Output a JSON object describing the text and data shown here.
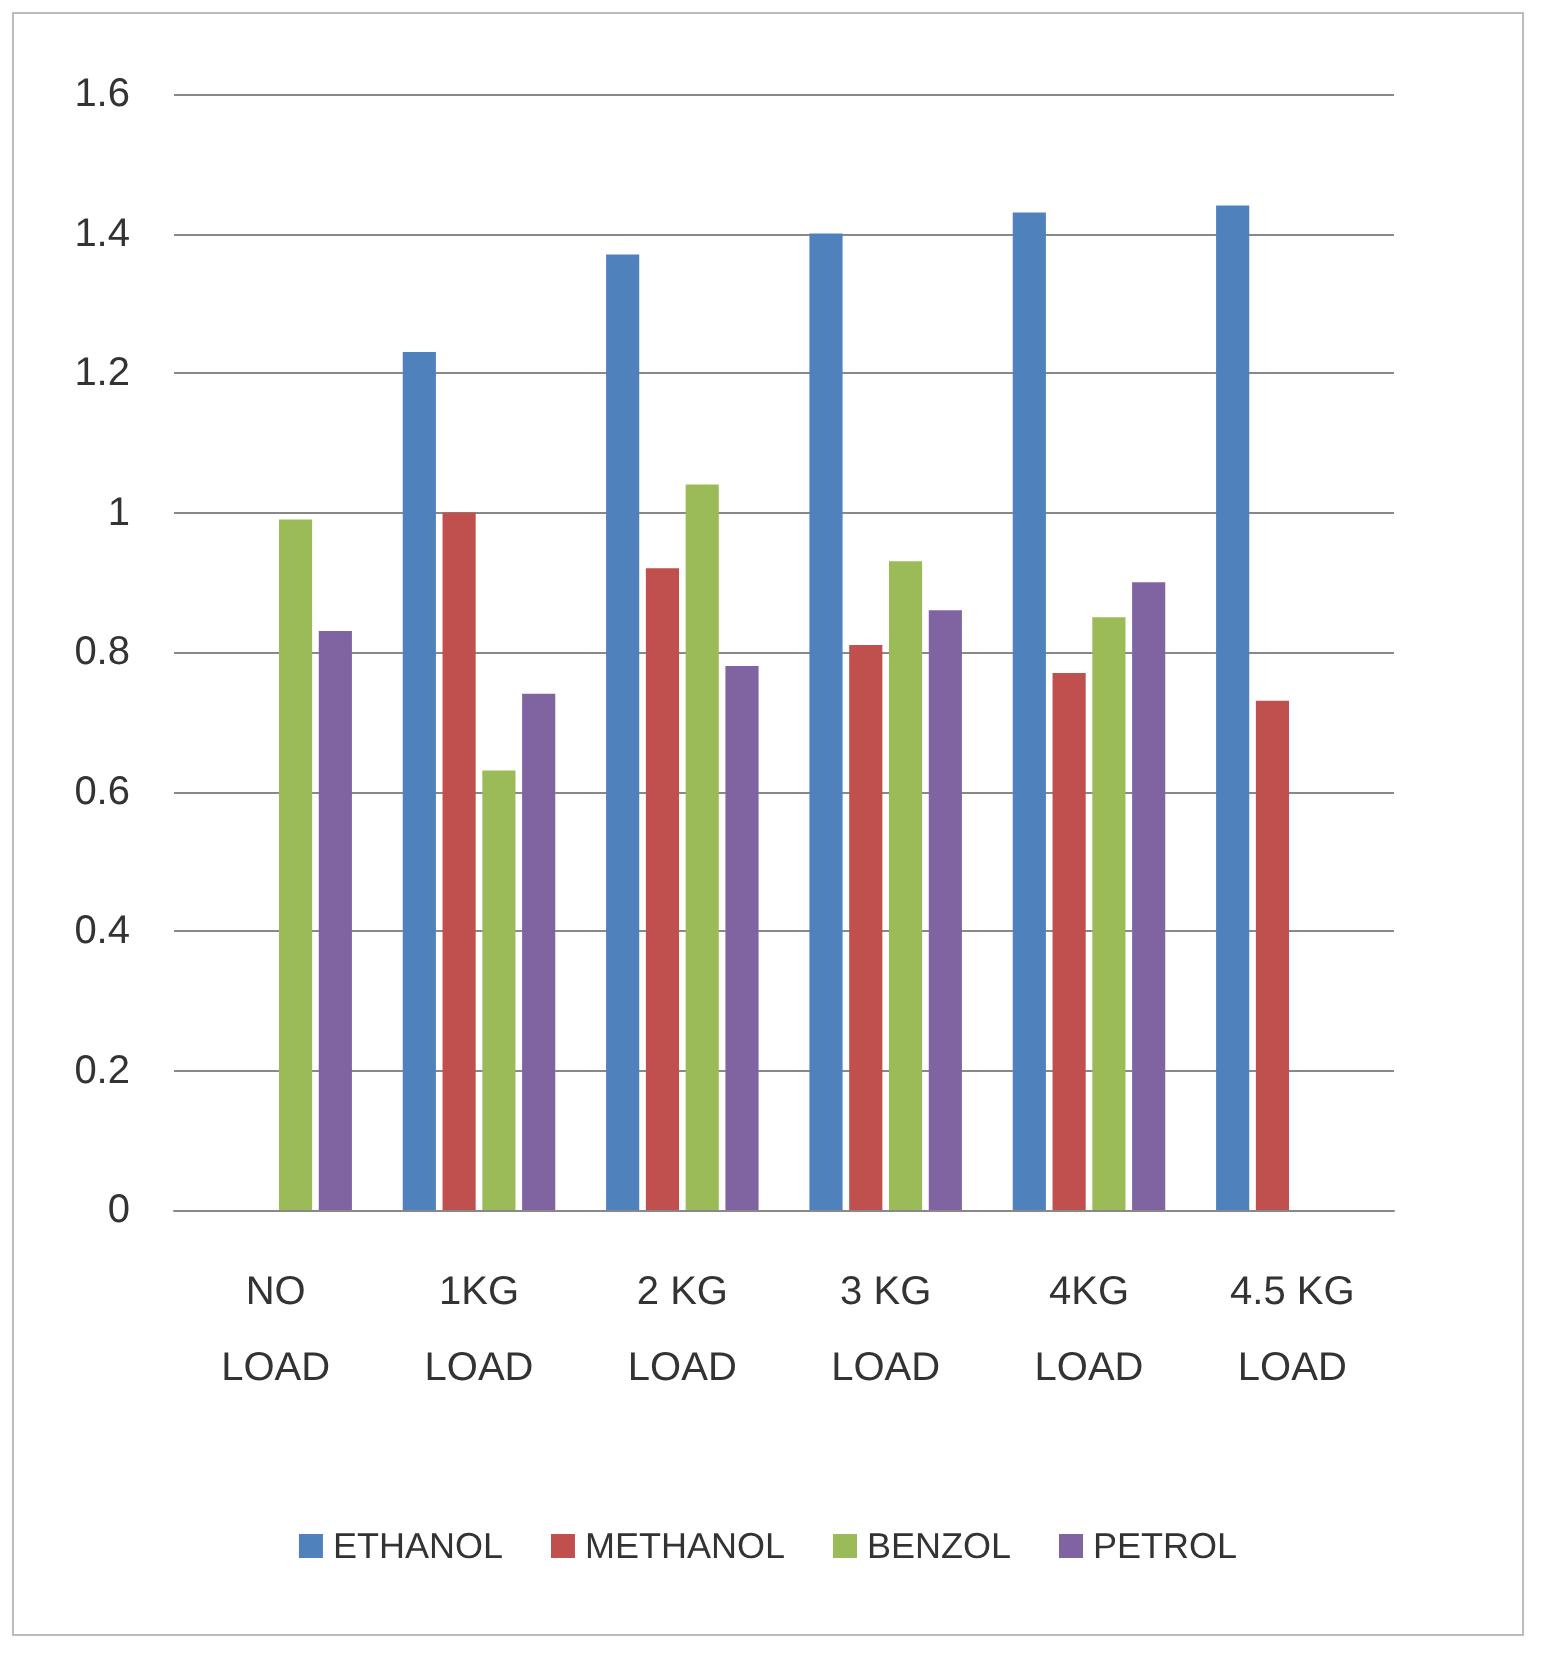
{
  "chart_data": {
    "type": "bar",
    "categories": [
      "NO\nLOAD",
      "1KG\nLOAD",
      "2 KG\nLOAD",
      "3 KG\nLOAD",
      "4KG\nLOAD",
      "4.5 KG\nLOAD"
    ],
    "series": [
      {
        "name": "ETHANOL",
        "color": "#4f81bd",
        "values": [
          null,
          1.23,
          1.37,
          1.4,
          1.43,
          1.44
        ]
      },
      {
        "name": "METHANOL",
        "color": "#c0504d",
        "values": [
          null,
          1.0,
          0.92,
          0.81,
          0.77,
          0.73
        ]
      },
      {
        "name": "BENZOL",
        "color": "#9bbb59",
        "values": [
          0.99,
          0.63,
          1.04,
          0.93,
          0.85,
          null
        ]
      },
      {
        "name": "PETROL",
        "color": "#8064a2",
        "values": [
          0.83,
          0.74,
          0.78,
          0.86,
          0.9,
          null
        ]
      }
    ],
    "ylim": [
      0,
      1.6
    ],
    "yticks": [
      0,
      0.2,
      0.4,
      0.6,
      0.8,
      1,
      1.2,
      1.4,
      1.6
    ],
    "grid": "y",
    "legend": "bottom"
  }
}
